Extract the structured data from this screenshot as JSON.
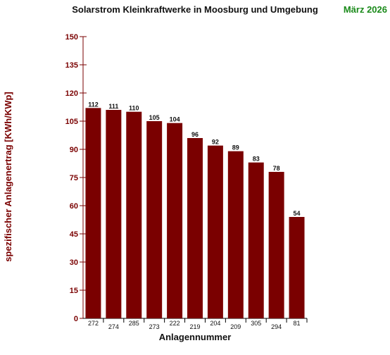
{
  "colors": {
    "bar": "#7a0000",
    "axis": "#7a0000",
    "period": "#1a8a1a",
    "text": "#111111"
  },
  "chart_data": {
    "type": "bar",
    "title": "Solarstrom Kleinkraftwerke in Moosburg und Umgebung",
    "period_label": "März 2026",
    "xlabel": "Anlagennummer",
    "ylabel": "spezifischer Anlagenertrag  [KWh/KWp]",
    "ylim": [
      0,
      150
    ],
    "yticks": [
      0,
      15,
      30,
      45,
      60,
      75,
      90,
      105,
      120,
      135,
      150
    ],
    "grid": false,
    "categories": [
      "272",
      "274",
      "285",
      "273",
      "222",
      "219",
      "204",
      "209",
      "305",
      "294",
      "81"
    ],
    "values": [
      112,
      111,
      110,
      105,
      104,
      96,
      92,
      89,
      83,
      78,
      54
    ],
    "data_labels": [
      "112",
      "111",
      "110",
      "105",
      "104",
      "96",
      "92",
      "89",
      "83",
      "78",
      "54"
    ]
  }
}
